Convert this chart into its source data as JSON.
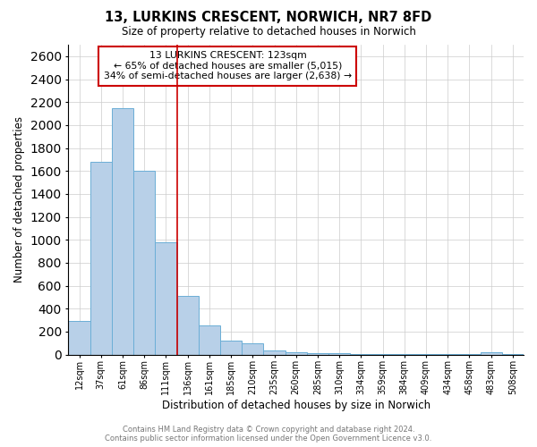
{
  "title1": "13, LURKINS CRESCENT, NORWICH, NR7 8FD",
  "title2": "Size of property relative to detached houses in Norwich",
  "xlabel": "Distribution of detached houses by size in Norwich",
  "ylabel": "Number of detached properties",
  "annotation_line1": "13 LURKINS CRESCENT: 123sqm",
  "annotation_line2": "← 65% of detached houses are smaller (5,015)",
  "annotation_line3": "34% of semi-detached houses are larger (2,638) →",
  "bar_color": "#b8d0e8",
  "bar_edge_color": "#6baed6",
  "marker_line_color": "#cc0000",
  "annotation_box_edge_color": "#cc0000",
  "background_color": "#ffffff",
  "grid_color": "#cccccc",
  "footer_text1": "Contains HM Land Registry data © Crown copyright and database right 2024.",
  "footer_text2": "Contains public sector information licensed under the Open Government Licence v3.0.",
  "categories": [
    "12sqm",
    "37sqm",
    "61sqm",
    "86sqm",
    "111sqm",
    "136sqm",
    "161sqm",
    "185sqm",
    "210sqm",
    "235sqm",
    "260sqm",
    "285sqm",
    "310sqm",
    "334sqm",
    "359sqm",
    "384sqm",
    "409sqm",
    "434sqm",
    "458sqm",
    "483sqm",
    "508sqm"
  ],
  "values": [
    290,
    1680,
    2150,
    1600,
    975,
    510,
    250,
    120,
    100,
    35,
    20,
    10,
    8,
    3,
    3,
    2,
    1,
    1,
    1,
    20,
    1
  ],
  "ylim": [
    0,
    2700
  ],
  "yticks": [
    0,
    200,
    400,
    600,
    800,
    1000,
    1200,
    1400,
    1600,
    1800,
    2000,
    2200,
    2400,
    2600
  ],
  "marker_bin_index": 4,
  "figsize": [
    6.0,
    5.0
  ],
  "dpi": 100
}
